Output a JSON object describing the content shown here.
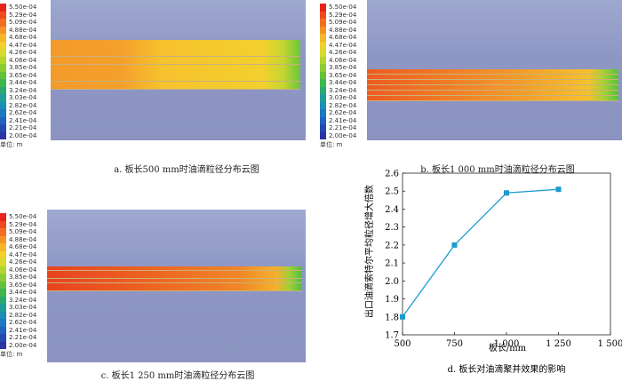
{
  "legend": {
    "labels": [
      "5.50e-04",
      "5.29e-04",
      "5.09e-04",
      "4.88e-04",
      "4.68e-04",
      "4.47e-04",
      "4.26e-04",
      "4.06e-04",
      "3.85e-04",
      "3.65e-04",
      "3.44e-04",
      "3.24e-04",
      "3.03e-04",
      "2.82e-04",
      "2.62e-04",
      "2.41e-04",
      "2.21e-04",
      "2.00e-04"
    ],
    "colors": [
      "#e8231c",
      "#ef4a1f",
      "#f26f22",
      "#f49426",
      "#f6b52a",
      "#f3cf2c",
      "#d8d92d",
      "#b3d52f",
      "#8ccc34",
      "#63c23a",
      "#3fb74d",
      "#2ca870",
      "#1f9e97",
      "#1b8fb4",
      "#1d79c2",
      "#2161c0",
      "#2549b3",
      "#2a34a3"
    ],
    "unit": "单位: m"
  },
  "panels": [
    {
      "caption": "a. 板长500 mm时油滴粒径分布云图"
    },
    {
      "caption": "b. 板长1 000 mm时油滴粒径分布云图"
    },
    {
      "caption": "c. 板长1 250 mm时油滴粒径分布云图"
    }
  ],
  "chart_data": {
    "type": "line",
    "caption": "d. 板长对油滴聚并效果的影响",
    "xlabel": "板长/mm",
    "ylabel": "出口油滴索特尔平均粒径增大倍数",
    "x": [
      500,
      750,
      1000,
      1250
    ],
    "y": [
      1.8,
      2.2,
      2.49,
      2.51
    ],
    "xlim": [
      500,
      1500
    ],
    "ylim": [
      1.7,
      2.6
    ],
    "xticks": [
      "500",
      "750",
      "1 000",
      "1 250",
      "1 500"
    ],
    "yticks": [
      "1.7",
      "1.8",
      "1.9",
      "2.0",
      "2.1",
      "2.2",
      "2.3",
      "2.4",
      "2.5",
      "2.6"
    ],
    "line_color": "#1f9bd0",
    "marker": "square",
    "grid": false
  }
}
